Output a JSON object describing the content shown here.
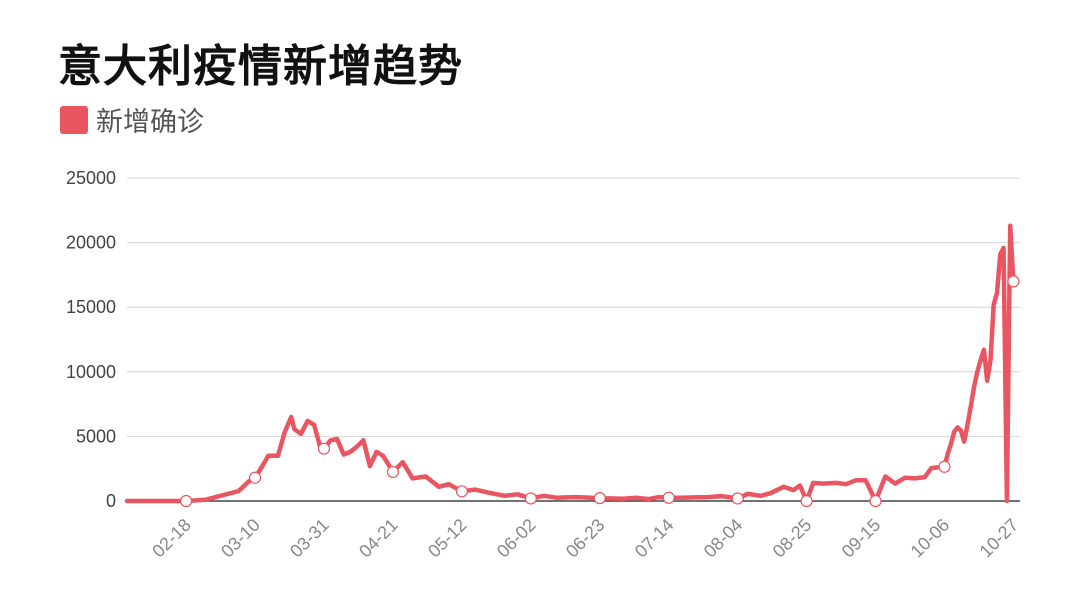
{
  "title": "意大利疫情新增趋势",
  "legend": {
    "label": "新增确诊",
    "color": "#e95560"
  },
  "chart_data": {
    "type": "line",
    "title": "意大利疫情新增趋势",
    "xlabel": "",
    "ylabel": "",
    "ylim": [
      0,
      25000
    ],
    "yticks": [
      0,
      5000,
      10000,
      15000,
      20000,
      25000
    ],
    "x_tick_labels": [
      "02-18",
      "03-10",
      "03-31",
      "04-21",
      "05-12",
      "06-02",
      "06-23",
      "07-14",
      "08-04",
      "08-25",
      "09-15",
      "10-06",
      "10-27"
    ],
    "grid": true,
    "legend_position": "top-left",
    "series": [
      {
        "name": "新增确诊",
        "color": "#e95560",
        "points": [
          [
            "01-31",
            0
          ],
          [
            "02-18",
            0
          ],
          [
            "02-24",
            100
          ],
          [
            "03-01",
            500
          ],
          [
            "03-05",
            770
          ],
          [
            "03-08",
            1500
          ],
          [
            "03-10",
            1800
          ],
          [
            "03-12",
            2600
          ],
          [
            "03-14",
            3500
          ],
          [
            "03-17",
            3500
          ],
          [
            "03-19",
            5300
          ],
          [
            "03-21",
            6500
          ],
          [
            "03-22",
            5560
          ],
          [
            "03-24",
            5200
          ],
          [
            "03-26",
            6200
          ],
          [
            "03-28",
            5900
          ],
          [
            "03-30",
            4050
          ],
          [
            "03-31",
            4050
          ],
          [
            "04-02",
            4700
          ],
          [
            "04-04",
            4800
          ],
          [
            "04-06",
            3600
          ],
          [
            "04-08",
            3800
          ],
          [
            "04-10",
            4200
          ],
          [
            "04-12",
            4700
          ],
          [
            "04-14",
            2700
          ],
          [
            "04-16",
            3800
          ],
          [
            "04-18",
            3500
          ],
          [
            "04-21",
            2250
          ],
          [
            "04-24",
            3000
          ],
          [
            "04-27",
            1750
          ],
          [
            "05-01",
            1900
          ],
          [
            "05-05",
            1100
          ],
          [
            "05-08",
            1300
          ],
          [
            "05-12",
            750
          ],
          [
            "05-16",
            880
          ],
          [
            "05-20",
            650
          ],
          [
            "05-25",
            400
          ],
          [
            "05-29",
            520
          ],
          [
            "06-02",
            200
          ],
          [
            "06-06",
            400
          ],
          [
            "06-10",
            250
          ],
          [
            "06-15",
            300
          ],
          [
            "06-19",
            270
          ],
          [
            "06-23",
            220
          ],
          [
            "06-26",
            200
          ],
          [
            "06-30",
            180
          ],
          [
            "07-04",
            250
          ],
          [
            "07-08",
            150
          ],
          [
            "07-11",
            300
          ],
          [
            "07-14",
            250
          ],
          [
            "07-18",
            250
          ],
          [
            "07-22",
            280
          ],
          [
            "07-26",
            300
          ],
          [
            "07-30",
            380
          ],
          [
            "08-04",
            200
          ],
          [
            "08-07",
            550
          ],
          [
            "08-11",
            400
          ],
          [
            "08-14",
            600
          ],
          [
            "08-18",
            1100
          ],
          [
            "08-21",
            840
          ],
          [
            "08-23",
            1200
          ],
          [
            "08-25",
            0
          ],
          [
            "08-27",
            1400
          ],
          [
            "08-30",
            1350
          ],
          [
            "09-03",
            1400
          ],
          [
            "09-06",
            1300
          ],
          [
            "09-09",
            1600
          ],
          [
            "09-12",
            1600
          ],
          [
            "09-15",
            0
          ],
          [
            "09-18",
            1900
          ],
          [
            "09-21",
            1350
          ],
          [
            "09-24",
            1800
          ],
          [
            "09-27",
            1750
          ],
          [
            "09-30",
            1850
          ],
          [
            "10-02",
            2550
          ],
          [
            "10-04",
            2600
          ],
          [
            "10-06",
            2650
          ],
          [
            "10-07",
            3680
          ],
          [
            "10-08",
            4460
          ],
          [
            "10-09",
            5370
          ],
          [
            "10-10",
            5700
          ],
          [
            "10-11",
            5450
          ],
          [
            "10-12",
            4600
          ],
          [
            "10-13",
            5900
          ],
          [
            "10-14",
            7330
          ],
          [
            "10-15",
            8800
          ],
          [
            "10-16",
            10000
          ],
          [
            "10-17",
            10900
          ],
          [
            "10-18",
            11700
          ],
          [
            "10-19",
            9300
          ],
          [
            "10-20",
            10900
          ],
          [
            "10-21",
            15200
          ],
          [
            "10-22",
            16100
          ],
          [
            "10-23",
            19100
          ],
          [
            "10-24",
            19600
          ],
          [
            "10-25",
            0
          ],
          [
            "10-26",
            21300
          ],
          [
            "10-27",
            17000
          ]
        ]
      }
    ],
    "markers": [
      [
        "02-18",
        0
      ],
      [
        "03-10",
        1800
      ],
      [
        "03-31",
        4050
      ],
      [
        "04-21",
        2250
      ],
      [
        "05-12",
        750
      ],
      [
        "06-02",
        200
      ],
      [
        "06-23",
        220
      ],
      [
        "07-14",
        250
      ],
      [
        "08-04",
        200
      ],
      [
        "08-25",
        0
      ],
      [
        "09-15",
        0
      ],
      [
        "10-06",
        2650
      ],
      [
        "10-27",
        17000
      ]
    ]
  }
}
